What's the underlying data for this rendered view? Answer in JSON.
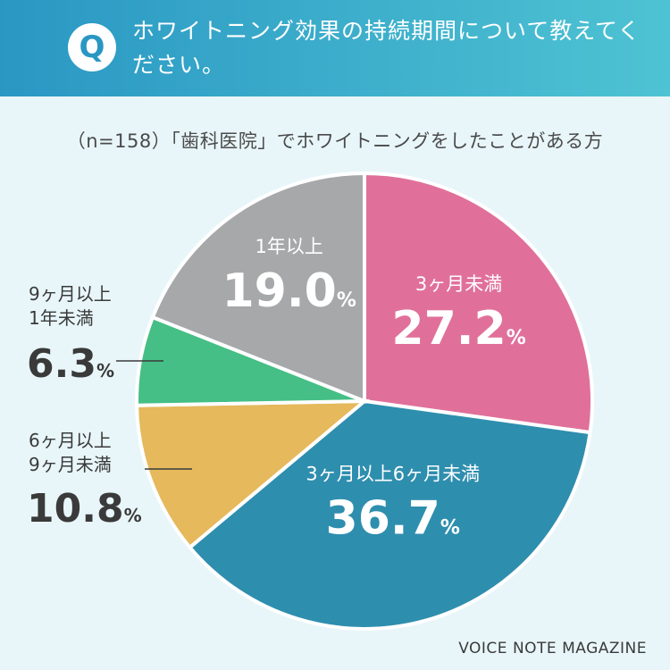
{
  "header": {
    "badge": "Q",
    "question": "ホワイトニング効果の持続期間について教えてください。"
  },
  "subtitle": "（n=158）「歯科医院」でホワイトニングをしたことがある方",
  "footer": "VOICE NOTE MAGAZINE",
  "chart_data": {
    "type": "pie",
    "slices": [
      {
        "label": "3ヶ月未満",
        "value": 27.2,
        "display": "27.2",
        "color": "#e0709a"
      },
      {
        "label": "3ヶ月以上6ヶ月未満",
        "value": 36.7,
        "display": "36.7",
        "color": "#2e8eae"
      },
      {
        "label": "6ヶ月以上9ヶ月未満",
        "value": 10.8,
        "display": "10.8",
        "color": "#e5b95c"
      },
      {
        "label": "9ヶ月以上1年未満",
        "value": 6.3,
        "display": "6.3",
        "color": "#45bf85"
      },
      {
        "label": "1年以上",
        "value": 19.0,
        "display": "19.0",
        "color": "#a7a8aa"
      }
    ],
    "unit": "%"
  }
}
